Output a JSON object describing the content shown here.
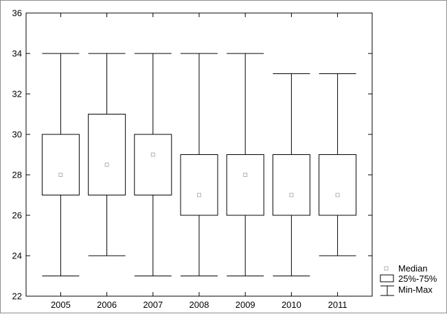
{
  "chart_data": {
    "type": "boxplot",
    "categories": [
      "2005",
      "2006",
      "2007",
      "2008",
      "2009",
      "2010",
      "2011"
    ],
    "series": [
      {
        "category": "2005",
        "min": 23,
        "q1": 27,
        "median": 28,
        "q3": 30,
        "max": 34
      },
      {
        "category": "2006",
        "min": 24,
        "q1": 27,
        "median": 28.5,
        "q3": 31,
        "max": 34
      },
      {
        "category": "2007",
        "min": 23,
        "q1": 27,
        "median": 29,
        "q3": 30,
        "max": 34
      },
      {
        "category": "2008",
        "min": 23,
        "q1": 26,
        "median": 27,
        "q3": 29,
        "max": 34
      },
      {
        "category": "2009",
        "min": 23,
        "q1": 26,
        "median": 28,
        "q3": 29,
        "max": 34
      },
      {
        "category": "2010",
        "min": 23,
        "q1": 26,
        "median": 27,
        "q3": 29,
        "max": 33
      },
      {
        "category": "2011",
        "min": 24,
        "q1": 26,
        "median": 27,
        "q3": 29,
        "max": 33
      }
    ],
    "ylim": [
      22,
      36
    ],
    "yticks": [
      22,
      24,
      26,
      28,
      30,
      32,
      34,
      36
    ],
    "grid": false,
    "legend": {
      "placement": "bottom-right",
      "entries": [
        {
          "symbol": "median-marker",
          "label": "Median"
        },
        {
          "symbol": "box",
          "label": "25%-75%"
        },
        {
          "symbol": "whisker",
          "label": "Min-Max"
        }
      ]
    },
    "colors": {
      "stroke": "#000000",
      "box_fill": "#ffffff",
      "median_marker": "#b0b0b0",
      "frame": "#8c8c8c"
    }
  }
}
